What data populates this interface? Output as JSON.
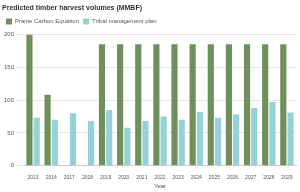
{
  "chart_data": {
    "type": "bar",
    "title": "Predicted timber harvest volumes (MMBF)",
    "x_label": "Year",
    "categories": [
      "2013",
      "2014",
      "2017",
      "2018",
      "2019",
      "2020",
      "2021",
      "2022",
      "2023",
      "2024",
      "2025",
      "2026",
      "2027",
      "2028",
      "2029"
    ],
    "series": [
      {
        "name": "Prairie Carbon Equation",
        "color": "#6f8f5c",
        "values": [
          200,
          108,
          null,
          null,
          185,
          185,
          185,
          185,
          185,
          185,
          185,
          185,
          185,
          185,
          185
        ]
      },
      {
        "name": "Tribal management plan",
        "color": "#96d1da",
        "values": [
          73,
          70,
          80,
          68,
          85,
          58,
          68,
          75,
          70,
          82,
          73,
          78,
          88,
          97,
          81
        ]
      }
    ],
    "ylim": [
      0,
      200
    ],
    "yticks": [
      0,
      50,
      100,
      150,
      200
    ],
    "grid": true,
    "legend": "top-left"
  }
}
